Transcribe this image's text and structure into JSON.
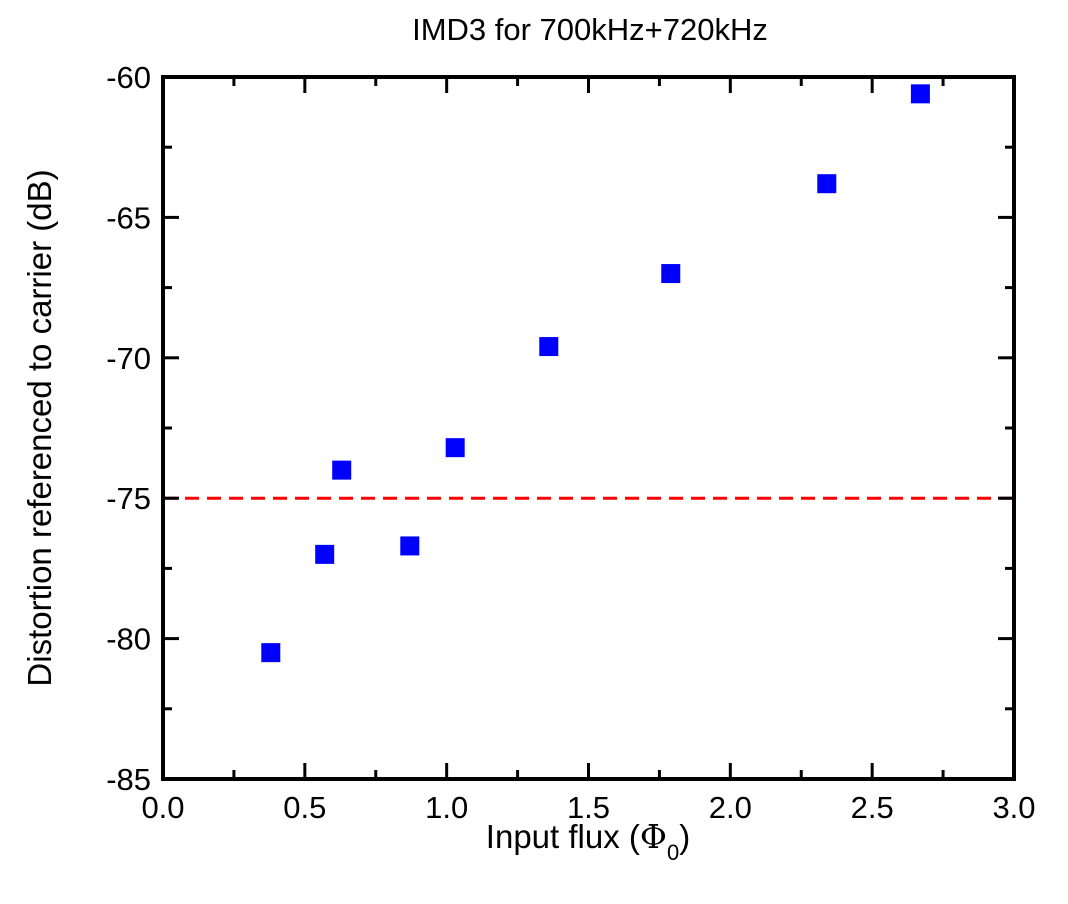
{
  "chart_data": {
    "type": "scatter",
    "title": "IMD3 for 700kHz+720kHz",
    "xlabel": "Input flux (",
    "xlabel_symbol": "Φ",
    "xlabel_subscript": "0",
    "xlabel_close": ")",
    "ylabel": "Distortion referenced to carrier (dB)",
    "xlim": [
      0.0,
      3.0
    ],
    "ylim": [
      -85,
      -60
    ],
    "x_ticks": [
      0.0,
      0.5,
      1.0,
      1.5,
      2.0,
      2.5,
      3.0
    ],
    "x_tick_labels": [
      "0.0",
      "0.5",
      "1.0",
      "1.5",
      "2.0",
      "2.5",
      "3.0"
    ],
    "x_minor_ticks": [
      0.25,
      0.75,
      1.25,
      1.75,
      2.25,
      2.75
    ],
    "y_ticks": [
      -85,
      -80,
      -75,
      -70,
      -65,
      -60
    ],
    "y_tick_labels": [
      "-85",
      "-80",
      "-75",
      "-70",
      "-65",
      "-60"
    ],
    "y_minor_ticks": [
      -82.5,
      -77.5,
      -72.5,
      -67.5,
      -62.5
    ],
    "grid": false,
    "series": [
      {
        "marker": "square",
        "color": "#0000ff",
        "x": [
          0.38,
          0.57,
          0.63,
          0.87,
          1.03,
          1.36,
          1.79,
          2.34,
          2.67
        ],
        "y": [
          -80.5,
          -77.0,
          -74.0,
          -76.7,
          -73.2,
          -69.6,
          -67.0,
          -63.8,
          -60.6
        ]
      }
    ],
    "reference_lines": [
      {
        "orientation": "horizontal",
        "y": -75,
        "style": "dashed",
        "color": "#ff0000"
      }
    ]
  }
}
